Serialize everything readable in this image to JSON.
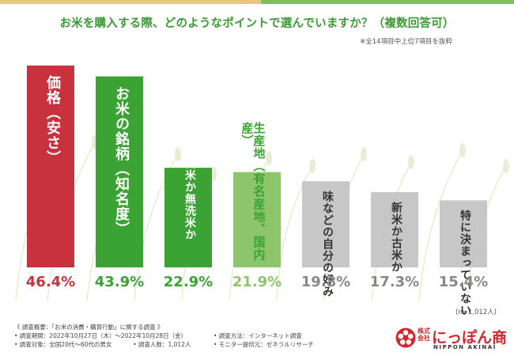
{
  "title": "お米を購入する際、どのようなポイントで選んでいますか？（複数回答可）",
  "note": "※全14項目中上位7項目を抜粋",
  "colors": {
    "red": "#c8323d",
    "green": "#3ba234",
    "light_green": "#8dc56c",
    "gray": "#bdbdbd",
    "title": "#3a9a33"
  },
  "chart_data": {
    "type": "bar",
    "categories": [
      "価格（安さ）",
      "お米の銘柄（知名度）",
      "精白米か無洗米か",
      "生産地（有名産地、国内産）",
      "味などの自分の好み",
      "新米か古米か",
      "特に決まっていない"
    ],
    "values": [
      46.4,
      43.9,
      22.9,
      21.9,
      19.8,
      17.3,
      15.4
    ],
    "value_labels": [
      "46.4%",
      "43.9%",
      "22.9%",
      "21.9%",
      "19.8%",
      "17.3%",
      "15.4%"
    ],
    "bar_colors": [
      "#c8323d",
      "#3ba234",
      "#3ba234",
      "#8dc56c",
      "#bdbdbd",
      "#bdbdbd",
      "#bdbdbd"
    ],
    "label_colors": [
      "#c8323d",
      "#3ba234",
      "#3ba234",
      "#8dc56c",
      "#888888",
      "#888888",
      "#888888"
    ],
    "bar_text_colors": [
      "#ffffff",
      "#ffffff",
      "#ffffff",
      "#3ba234",
      "#333333",
      "#333333",
      "#333333"
    ],
    "ylim": [
      0,
      50
    ],
    "xlabel": "",
    "ylabel": ""
  },
  "sample_note": "(n=1,012人)",
  "footer": {
    "survey_outline": "《 調査概要：「お米の消費・購買行動」に関する調査 》",
    "period": "• 調査期間：2022年10月27日（木）～2022年10月28日（金）",
    "target": "• 調査対象：全国20代～60代の男女",
    "count": "• 調査人数：1,012人",
    "method": "• 調査方法：インターネット調査",
    "provider": "• モニター提供元：ゼネラルリサーチ"
  },
  "logo": {
    "kabushiki": "株式会社",
    "name": "にっぽん商",
    "en": "NIPPON AKINAI"
  }
}
